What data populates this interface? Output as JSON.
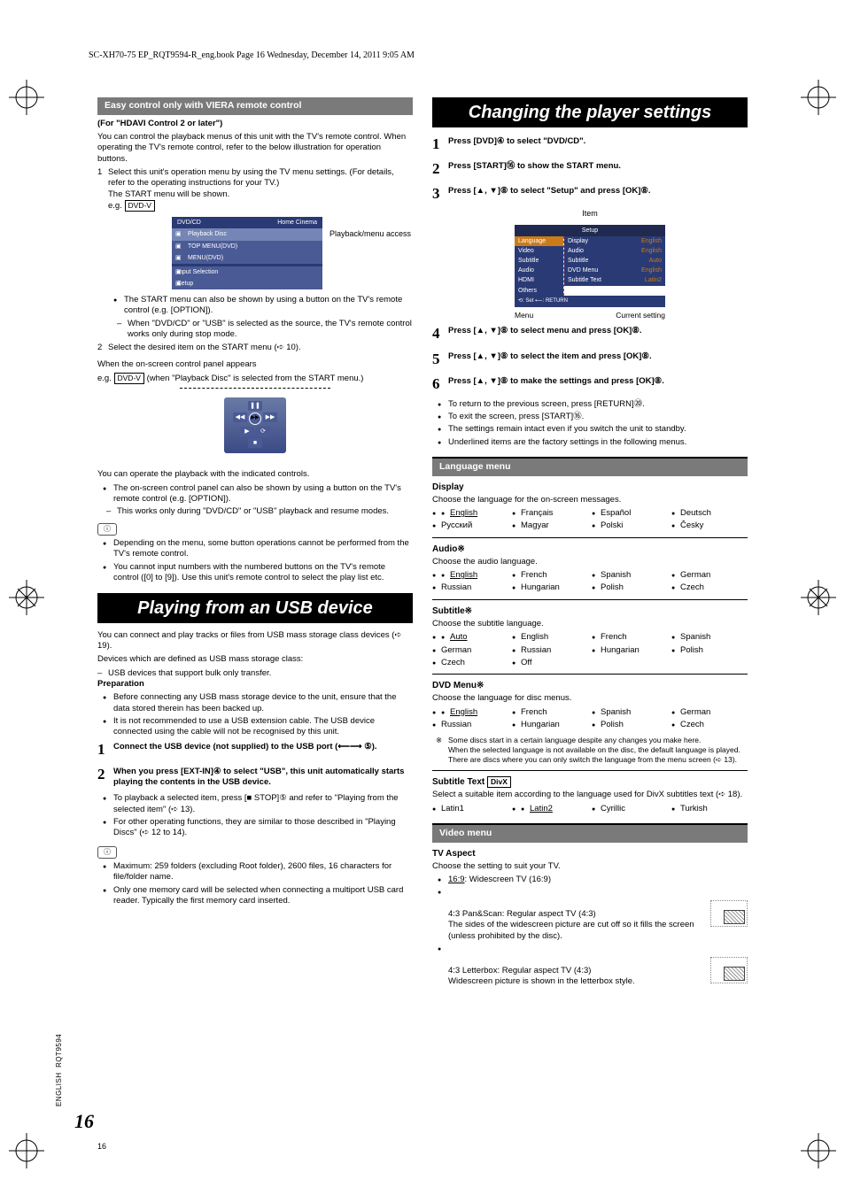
{
  "header": {
    "book_info": "SC-XH70-75 EP_RQT9594-R_eng.book  Page 16  Wednesday, December 14, 2011  9:05 AM"
  },
  "left": {
    "easy_control_bar": "Easy control only with VIERA remote control",
    "for_hdavi": "(For \"HDAVI Control 2 or later\")",
    "intro": "You can control the playback menus of this unit with the TV's remote control. When operating the TV's remote control, refer to the below illustration for operation buttons.",
    "step1": "Select this unit's operation menu by using the TV menu settings. (For details, refer to the operating instructions for your TV.)\nThe START menu will be shown.",
    "eg": "e.g.",
    "dvdv": "DVD-V",
    "dvd_osd": {
      "title_left": "DVD/CD",
      "title_right": "Home Cinema",
      "rows": [
        "Playback Disc",
        "TOP MENU(DVD)",
        "MENU(DVD)"
      ],
      "lower": [
        "Input Selection",
        "Setup"
      ],
      "side_label": "Playback/menu access"
    },
    "step1_bullets": [
      "The START menu can also be shown by using a button on the TV's remote control (e.g. [OPTION])."
    ],
    "step1_dashes": [
      "When \"DVD/CD\" or \"USB\" is selected as the source, the TV's remote control works only during stop mode."
    ],
    "step2": "Select the desired item on the START menu (➪ 10).",
    "oscp_intro1": "When the on-screen control panel appears",
    "oscp_intro2_a": "e.g. ",
    "oscp_intro2_b": " (when \"Playback Disc\" is selected from the START menu.)",
    "oscp_after": "You can operate the playback with the indicated controls.",
    "oscp_bullets": [
      "The on-screen control panel can also be shown by using a button on the TV's remote control (e.g. [OPTION])."
    ],
    "oscp_dashes": [
      "This works only during \"DVD/CD\" or \"USB\" playback and resume modes."
    ],
    "notes1": [
      "Depending on the menu, some button operations cannot be performed from the TV's remote control.",
      "You cannot input numbers with the numbered buttons on the TV's remote control ([0] to [9]). Use this unit's remote control to select the play list etc."
    ],
    "usb_heading": "Playing from an USB device",
    "usb_intro": "You can connect and play tracks or files from USB mass storage class devices (➪ 19).",
    "usb_sub1": "Devices which are defined as USB mass storage class:",
    "usb_dash": [
      "USB devices that support bulk only transfer."
    ],
    "prep_label": "Preparation",
    "prep_bullets": [
      "Before connecting any USB mass storage device to the unit, ensure that the data stored therein has been backed up.",
      "It is not recommended to use a USB extension cable. The USB device connected using the cable will not be recognised by this unit."
    ],
    "usb_steps": [
      "Connect the USB device (not supplied) to the USB port (⟵⟶ ⑤).",
      "When you press [EXT-IN]④ to select \"USB\", this unit automatically starts playing the contents in the USB device."
    ],
    "usb_after_bullets": [
      "To playback a selected item, press [■ STOP]⑤ and refer to \"Playing from the selected item\" (➪ 13).",
      "For other operating functions, they are similar to those described in \"Playing Discs\" (➪ 12 to 14)."
    ],
    "usb_notes": [
      "Maximum: 259 folders (excluding Root folder), 2600 files, 16 characters for file/folder name.",
      "Only one memory card will be selected when connecting a multiport USB card reader. Typically the first memory card inserted."
    ]
  },
  "right": {
    "heading": "Changing the player settings",
    "steps": [
      "Press [DVD]④ to select \"DVD/CD\".",
      "Press [START]⑯ to show the START menu.",
      "Press [▲, ▼]⑧ to select \"Setup\" and press [OK]⑧."
    ],
    "item_label": "Item",
    "osd": {
      "head": "Setup",
      "menu": [
        "Language",
        "Video",
        "Subtitle",
        "Audio",
        "HDMI",
        "Others"
      ],
      "items": [
        [
          "Display",
          "English"
        ],
        [
          "Audio",
          "English"
        ],
        [
          "Subtitle",
          "Auto"
        ],
        [
          "DVD Menu",
          "English"
        ],
        [
          "Subtitle Text",
          "Latin2"
        ]
      ],
      "foot": "⟲: Set   ⟵: RETURN",
      "label_menu": "Menu",
      "label_current": "Current setting"
    },
    "steps2": [
      "Press [▲, ▼]⑧ to select menu and press [OK]⑧.",
      "Press [▲, ▼]⑧ to select the item and press [OK]⑧.",
      "Press [▲, ▼]⑧ to make the settings and press [OK]⑧."
    ],
    "after_bullets": [
      "To return to the previous screen, press [RETURN]⑳.",
      "To exit the screen, press [START]⑯.",
      "The settings remain intact even if you switch the unit to standby.",
      "Underlined items are the factory settings in the following menus."
    ],
    "lang_menu_bar": "Language menu",
    "display": {
      "title": "Display",
      "desc": "Choose the language for the on-screen messages.",
      "opts": [
        "English",
        "Français",
        "Español",
        "Deutsch",
        "Русский",
        "Magyar",
        "Polski",
        "Česky"
      ],
      "default_index": 0
    },
    "audio": {
      "title": "Audio※",
      "desc": "Choose the audio language.",
      "opts": [
        "English",
        "French",
        "Spanish",
        "German",
        "Russian",
        "Hungarian",
        "Polish",
        "Czech"
      ],
      "default_index": 0
    },
    "subtitle": {
      "title": "Subtitle※",
      "desc": "Choose the subtitle language.",
      "opts": [
        "Auto",
        "English",
        "French",
        "Spanish",
        "German",
        "Russian",
        "Hungarian",
        "Polish",
        "Czech",
        "Off"
      ],
      "default_index": 0
    },
    "dvdmenu": {
      "title": "DVD Menu※",
      "desc": "Choose the language for disc menus.",
      "opts": [
        "English",
        "French",
        "Spanish",
        "German",
        "Russian",
        "Hungarian",
        "Polish",
        "Czech"
      ],
      "default_index": 0
    },
    "lang_note": "Some discs start in a certain language despite any changes you make here.\nWhen the selected language is not available on the disc, the default language is played. There are discs where you can only switch the language from the menu screen (➪ 13).",
    "subtext": {
      "title": "Subtitle Text",
      "box": "DivX",
      "desc": "Select a suitable item according to the language used for DivX subtitles text (➪ 18).",
      "opts": [
        "Latin1",
        "Latin2",
        "Cyrillic",
        "Turkish"
      ],
      "default_index": 1
    },
    "video_menu_bar": "Video menu",
    "tvaspect": {
      "title": "TV Aspect",
      "desc": "Choose the setting to suit your TV.",
      "opt1_a": "16:9",
      "opt1_b": ":  Widescreen TV (16:9)",
      "opt2": "4:3 Pan&Scan:  Regular aspect TV (4:3)\nThe sides of the widescreen picture are cut off so it fills the screen (unless prohibited by the disc).",
      "opt3": "4:3 Letterbox:  Regular aspect TV (4:3)\nWidescreen picture is shown in the letterbox style."
    }
  },
  "footer": {
    "side_english": "ENGLISH",
    "side_code": "RQT9594",
    "page_big": "16",
    "page_small": "16"
  }
}
